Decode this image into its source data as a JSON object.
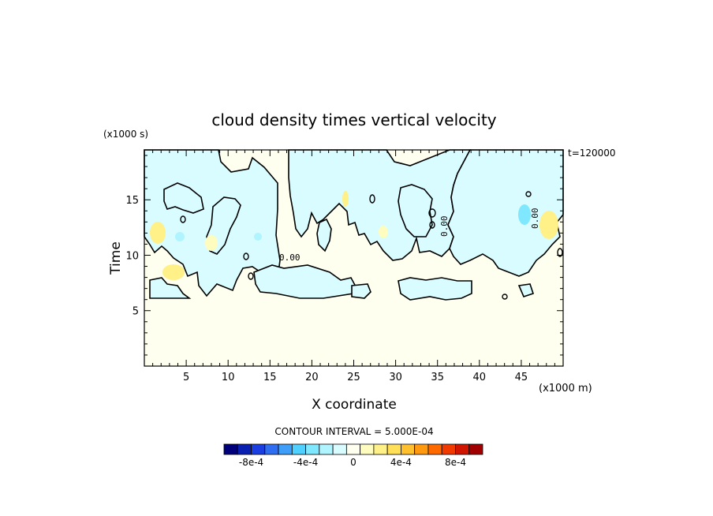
{
  "chart_data": {
    "type": "heatmap",
    "title": "cloud density times vertical velocity",
    "xlabel": "X coordinate",
    "ylabel": "Time",
    "x_units": "(x1000 m)",
    "y_units": "(x1000 s)",
    "time_label": "t=120000",
    "xlim": [
      0,
      50
    ],
    "ylim": [
      0,
      19.5
    ],
    "x_ticks": [
      "5",
      "10",
      "15",
      "20",
      "25",
      "30",
      "35",
      "40",
      "45"
    ],
    "y_ticks": [
      "5",
      "10",
      "15"
    ],
    "contour_label": "0.00",
    "contour_interval_text": "CONTOUR INTERVAL = 5.000E-04",
    "colorbar": {
      "colors": [
        "#00007a",
        "#0a20b0",
        "#1a3ee0",
        "#2f6ef0",
        "#3f9ef8",
        "#4fd0ff",
        "#7fe8ff",
        "#b0f4ff",
        "#d8fcff",
        "#fffff0",
        "#fffcc0",
        "#fff088",
        "#ffe058",
        "#ffc030",
        "#ff9a10",
        "#ff6a00",
        "#f03a00",
        "#d01600",
        "#a00000"
      ],
      "tick_labels": [
        "-8e-4",
        "-4e-4",
        "0",
        "4e-4",
        "8e-4"
      ]
    },
    "regions": {
      "background_value": 0,
      "negative_value": -0.00025,
      "positive_value": 0.00025
    }
  }
}
